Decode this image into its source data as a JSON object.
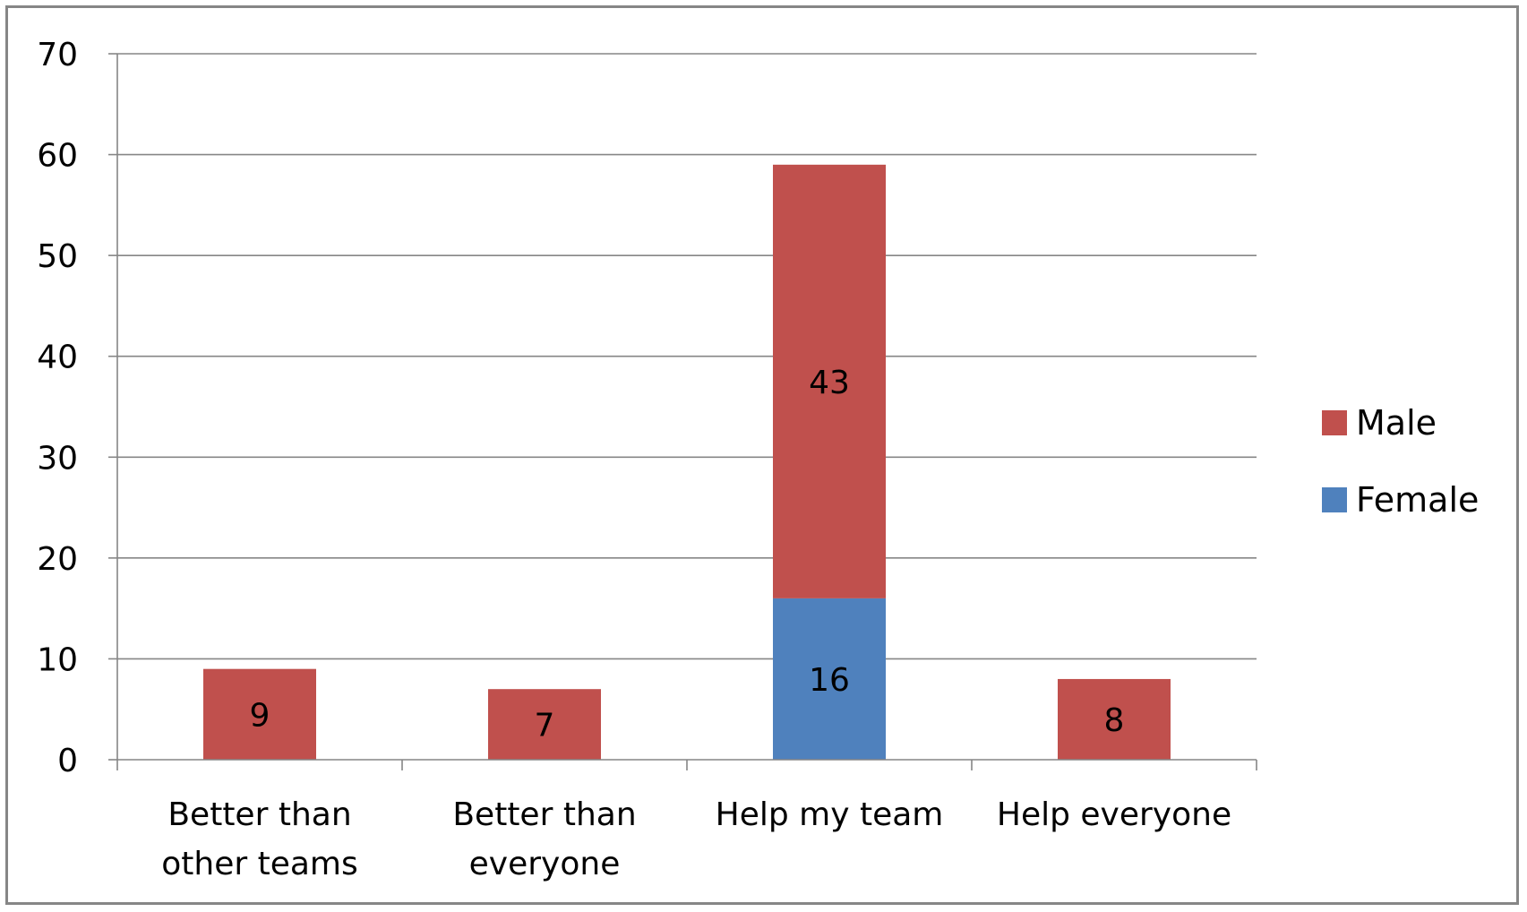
{
  "chart_data": {
    "type": "bar",
    "stacked": true,
    "categories": [
      [
        "Better than",
        "other teams"
      ],
      [
        "Better than",
        "everyone"
      ],
      [
        "Help my team"
      ],
      [
        "Help everyone"
      ]
    ],
    "series": [
      {
        "name": "Female",
        "color": "#4f81bd",
        "values": [
          0,
          0,
          16,
          0
        ]
      },
      {
        "name": "Male",
        "color": "#c0504d",
        "values": [
          9,
          7,
          43,
          8
        ]
      }
    ],
    "ylim": [
      0,
      70
    ],
    "yticks": [
      "0",
      "10",
      "20",
      "30",
      "40",
      "50",
      "60",
      "70"
    ],
    "grid": true,
    "legend": {
      "position": "right",
      "entries": [
        "Male",
        "Female"
      ]
    },
    "title": "",
    "xlabel": "",
    "ylabel": ""
  }
}
